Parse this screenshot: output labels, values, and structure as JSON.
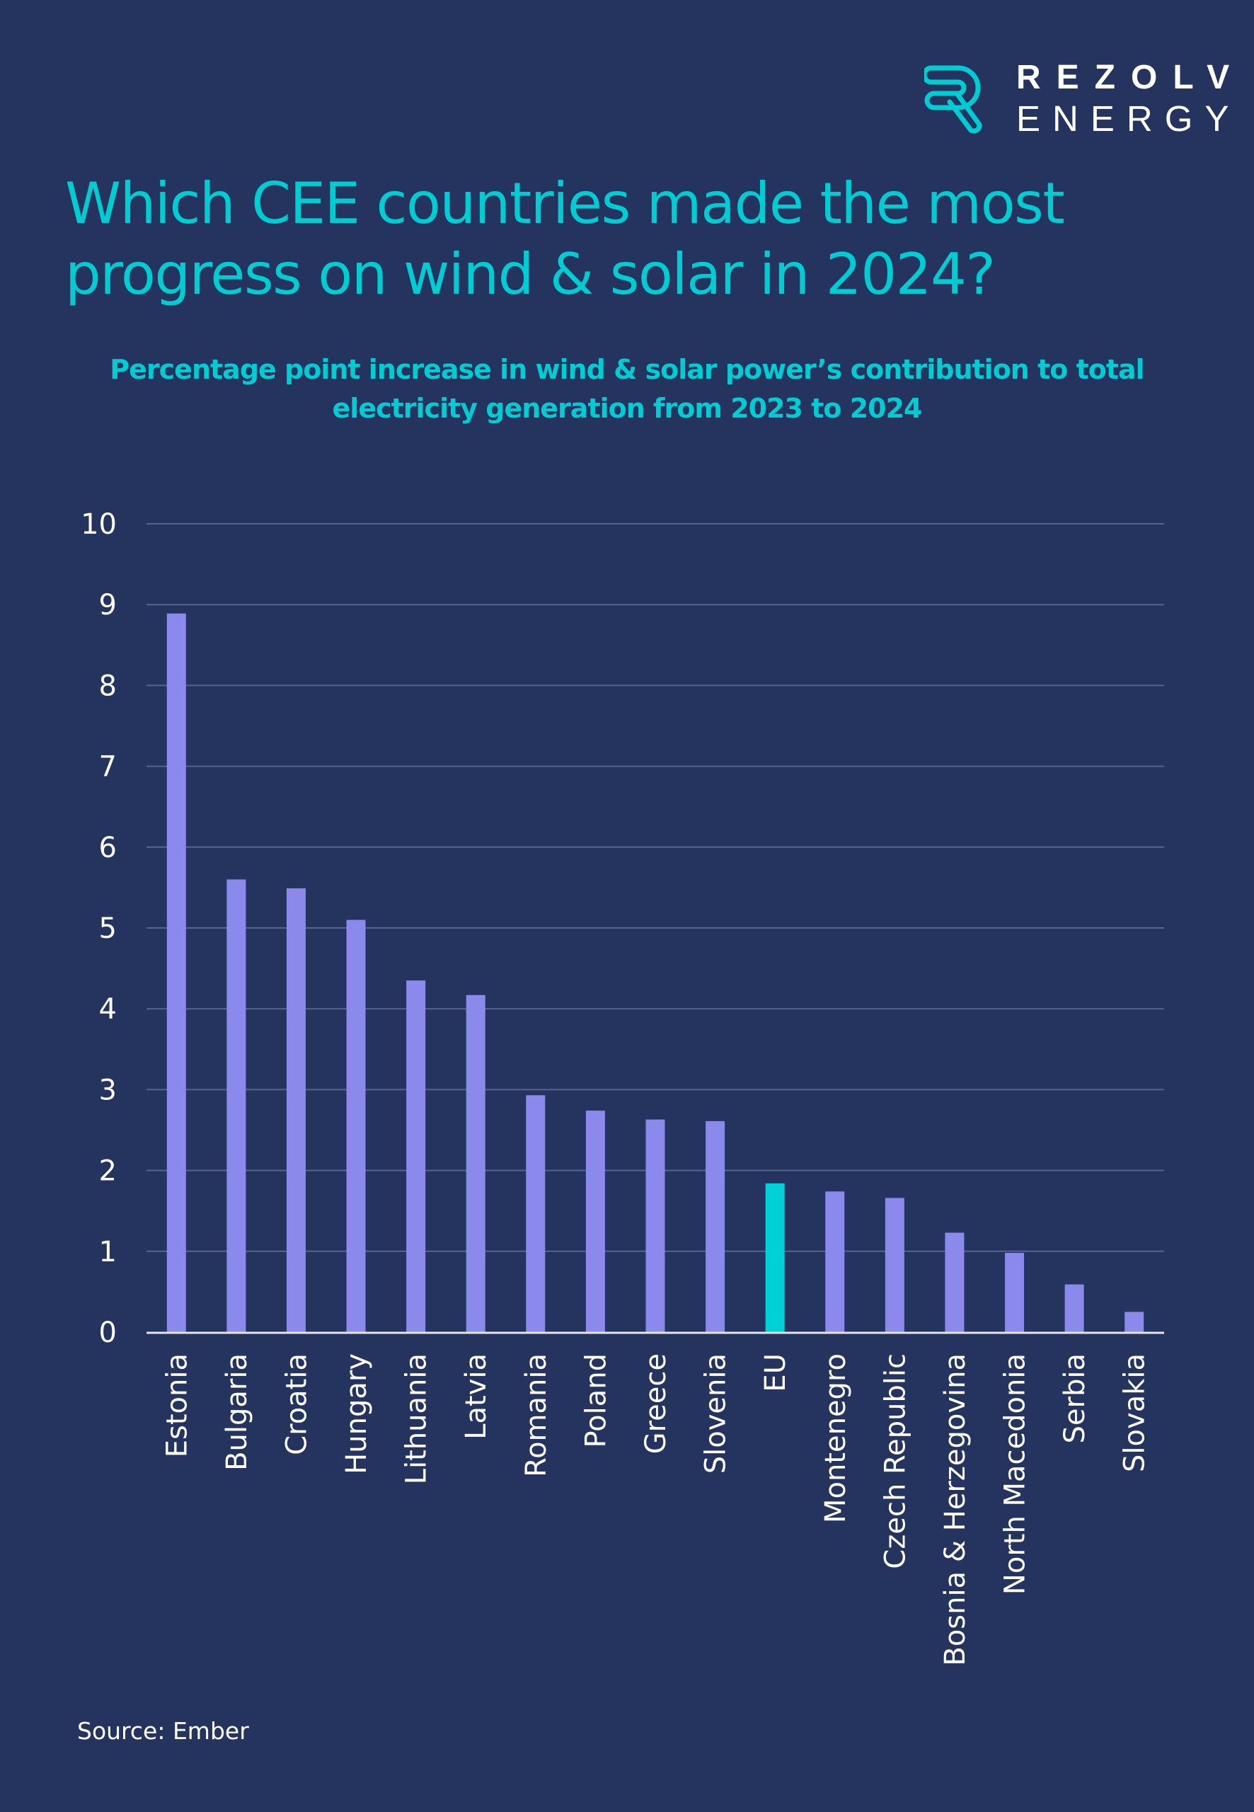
{
  "brand": {
    "name_line1": "REZOLV",
    "name_line2": "ENERGY",
    "logo_icon": "r-logo-icon",
    "logo_color": "#00CDD3"
  },
  "header": {
    "title": "Which CEE countries made the most progress on wind & solar in 2024?",
    "subtitle": "Percentage point increase in wind & solar power’s contribution to total electricity generation from 2023 to 2024"
  },
  "footer": {
    "source": "Source: Ember"
  },
  "colors": {
    "background": "#25335F",
    "bar": "#8C89EC",
    "highlight_bar": "#00D1D6",
    "gridline": "#56638E",
    "axis": "#E6E6F0",
    "text": "#FFFFFF",
    "title": "#00CDD3"
  },
  "chart_data": {
    "type": "bar",
    "title": "Percentage point increase in wind & solar power’s contribution to total electricity generation from 2023 to 2024",
    "xlabel": "",
    "ylabel": "",
    "ylim": [
      0,
      10
    ],
    "yticks": [
      "0",
      "1",
      "2",
      "3",
      "4",
      "5",
      "6",
      "7",
      "8",
      "9",
      "10"
    ],
    "grid": true,
    "legend": "none",
    "categories": [
      "Estonia",
      "Bulgaria",
      "Croatia",
      "Hungary",
      "Lithuania",
      "Latvia",
      "Romania",
      "Poland",
      "Greece",
      "Slovenia",
      "EU",
      "Montenegro",
      "Czech Republic",
      "Bosnia & Herzegovina",
      "North Macedonia",
      "Serbia",
      "Slovakia"
    ],
    "values": [
      8.89,
      5.6,
      5.49,
      5.1,
      4.35,
      4.17,
      2.93,
      2.74,
      2.63,
      2.61,
      1.84,
      1.74,
      1.66,
      1.23,
      0.98,
      0.59,
      0.25
    ],
    "highlight": [
      "EU"
    ]
  }
}
